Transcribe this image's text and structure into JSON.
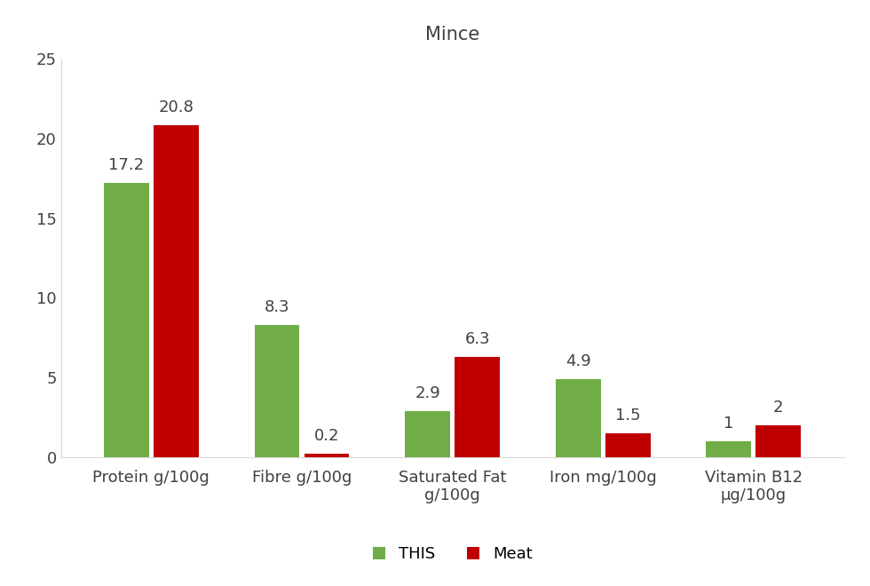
{
  "chart_data": {
    "type": "bar",
    "title": "Mince",
    "categories": [
      "Protein g/100g",
      "Fibre g/100g",
      "Saturated Fat g/100g",
      "Iron mg/100g",
      "Vitamin B12 µg/100g"
    ],
    "series": [
      {
        "name": "THIS",
        "color": "#70ad47",
        "values": [
          17.2,
          8.3,
          2.9,
          4.9,
          1
        ]
      },
      {
        "name": "Meat",
        "color": "#c00000",
        "values": [
          20.8,
          0.2,
          6.3,
          1.5,
          2
        ]
      }
    ],
    "ylim": [
      0,
      25
    ],
    "yticks": [
      0,
      5,
      10,
      15,
      20,
      25
    ],
    "grid": false,
    "legend": "lower center",
    "data_labels": true
  }
}
